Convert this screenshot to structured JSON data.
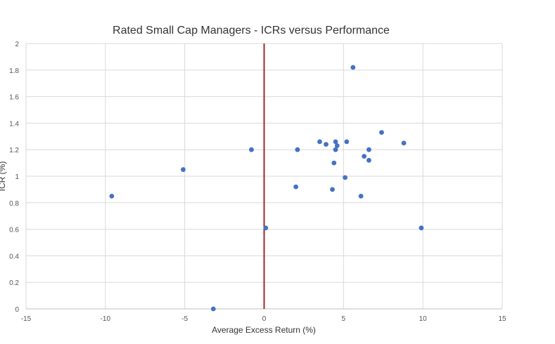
{
  "chart_data": {
    "type": "scatter",
    "title": "Rated Small Cap Managers - ICRs versus Performance",
    "xlabel": "Average Excess Return (%)",
    "ylabel": "ICR (%)",
    "xlim": [
      -15,
      15
    ],
    "ylim": [
      0,
      2
    ],
    "xticks": [
      "-15",
      "-10",
      "-5",
      "0",
      "5",
      "10",
      "15"
    ],
    "yticks": [
      "0",
      "0.2",
      "0.4",
      "0.6",
      "0.8",
      "1",
      "1.2",
      "1.4",
      "1.6",
      "1.8",
      "2"
    ],
    "grid": true,
    "reference_line": {
      "x": 0,
      "color": "#a0282c"
    },
    "marker_color": "#4472c4",
    "points": [
      {
        "x": -9.6,
        "y": 0.85
      },
      {
        "x": -5.1,
        "y": 1.05
      },
      {
        "x": -3.2,
        "y": 0.0
      },
      {
        "x": -0.8,
        "y": 1.2
      },
      {
        "x": 0.1,
        "y": 0.61
      },
      {
        "x": 2.0,
        "y": 0.92
      },
      {
        "x": 2.1,
        "y": 1.2
      },
      {
        "x": 3.5,
        "y": 1.26
      },
      {
        "x": 3.9,
        "y": 1.24
      },
      {
        "x": 4.3,
        "y": 0.9
      },
      {
        "x": 4.4,
        "y": 1.1
      },
      {
        "x": 4.5,
        "y": 1.2
      },
      {
        "x": 4.5,
        "y": 1.26
      },
      {
        "x": 4.6,
        "y": 1.23
      },
      {
        "x": 5.1,
        "y": 0.99
      },
      {
        "x": 5.2,
        "y": 1.26
      },
      {
        "x": 5.6,
        "y": 1.82
      },
      {
        "x": 6.1,
        "y": 0.85
      },
      {
        "x": 6.3,
        "y": 1.15
      },
      {
        "x": 6.6,
        "y": 1.2
      },
      {
        "x": 6.6,
        "y": 1.12
      },
      {
        "x": 7.4,
        "y": 1.33
      },
      {
        "x": 8.8,
        "y": 1.25
      },
      {
        "x": 9.9,
        "y": 0.61
      }
    ]
  }
}
